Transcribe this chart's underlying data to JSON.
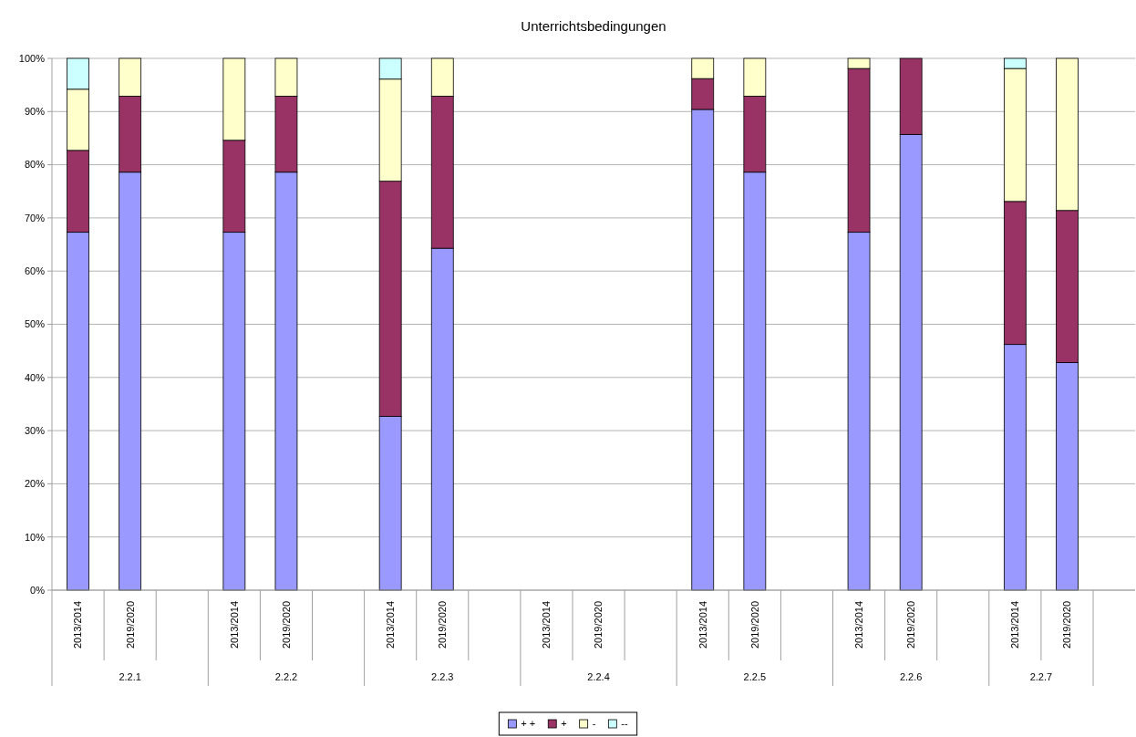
{
  "chart_data": {
    "type": "bar",
    "title": "Unterrichtsbedingungen",
    "stacked": true,
    "categories": [
      "2013/2014",
      "2019/2020",
      null,
      "2013/2014",
      "2019/2020",
      null,
      "2013/2014",
      "2019/2020",
      null,
      "2013/2014",
      "2019/2020",
      null,
      "2013/2014",
      "2019/2020",
      null,
      "2013/2014",
      "2019/2020",
      null,
      "2013/2014",
      "2019/2020"
    ],
    "annotations": [
      "2.2.1",
      "2.2.2",
      "2.2.3",
      "2.2.4",
      "2.2.5",
      "2.2.6",
      "2.2.7"
    ],
    "series": [
      {
        "name": "+ +",
        "color": "#9999ff",
        "values": [
          67.3,
          78.6,
          null,
          67.3,
          78.6,
          null,
          32.7,
          64.3,
          null,
          null,
          null,
          null,
          90.4,
          78.6,
          null,
          67.3,
          85.7,
          null,
          46.2,
          42.8
        ]
      },
      {
        "name": "+",
        "color": "#993366",
        "values": [
          15.4,
          14.3,
          null,
          17.3,
          14.3,
          null,
          44.2,
          28.6,
          null,
          null,
          null,
          null,
          5.8,
          14.3,
          null,
          30.8,
          14.3,
          null,
          26.9,
          28.6
        ]
      },
      {
        "name": "-",
        "color": "#ffffcc",
        "values": [
          11.5,
          7.1,
          null,
          15.4,
          7.1,
          null,
          19.2,
          7.1,
          null,
          null,
          null,
          null,
          3.8,
          7.1,
          null,
          1.9,
          0,
          null,
          25.0,
          28.6
        ]
      },
      {
        "name": "--",
        "color": "#ccffff",
        "values": [
          5.8,
          0,
          null,
          0,
          0,
          null,
          3.9,
          0,
          null,
          null,
          null,
          null,
          0,
          0,
          null,
          0,
          0,
          null,
          1.9,
          0
        ]
      }
    ],
    "ylim": [
      0,
      100
    ],
    "yticks": [
      {
        "value": 0,
        "label": "0%"
      },
      {
        "value": 10,
        "label": "10%"
      },
      {
        "value": 20,
        "label": "20%"
      },
      {
        "value": 30,
        "label": "30%"
      },
      {
        "value": 40,
        "label": "40%"
      },
      {
        "value": 50,
        "label": "50%"
      },
      {
        "value": 60,
        "label": "60%"
      },
      {
        "value": 70,
        "label": "70%"
      },
      {
        "value": 80,
        "label": "80%"
      },
      {
        "value": 90,
        "label": "90%"
      },
      {
        "value": 100,
        "label": "100%"
      }
    ],
    "grid": "y",
    "legend": "bottom"
  }
}
